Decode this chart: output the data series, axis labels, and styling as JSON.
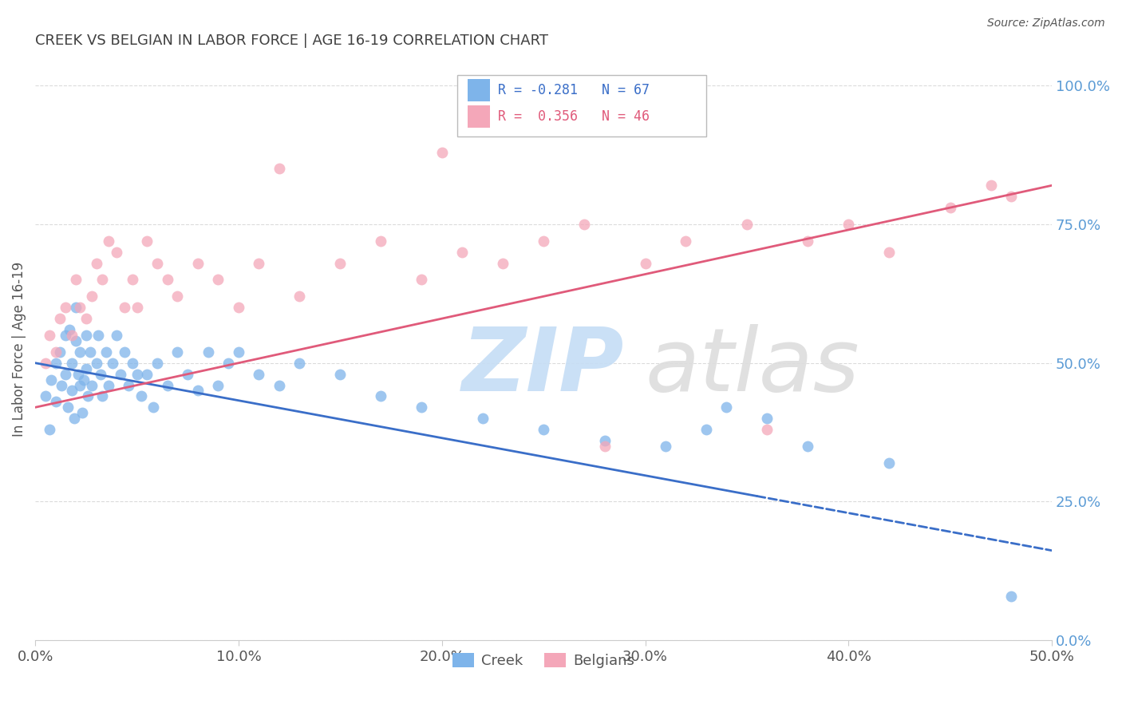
{
  "title": "CREEK VS BELGIAN IN LABOR FORCE | AGE 16-19 CORRELATION CHART",
  "source": "Source: ZipAtlas.com",
  "ylabel": "In Labor Force | Age 16-19",
  "xlim": [
    0.0,
    0.5
  ],
  "ylim": [
    0.0,
    1.05
  ],
  "xticks": [
    0.0,
    0.1,
    0.2,
    0.3,
    0.4,
    0.5
  ],
  "xticklabels": [
    "0.0%",
    "10.0%",
    "20.0%",
    "30.0%",
    "40.0%",
    "50.0%"
  ],
  "yticks": [
    0.0,
    0.25,
    0.5,
    0.75,
    1.0
  ],
  "yticklabels_right": [
    "0.0%",
    "25.0%",
    "50.0%",
    "75.0%",
    "100.0%"
  ],
  "creek_color": "#7EB4EA",
  "belgian_color": "#F4A7B9",
  "creek_line_color": "#3A6EC8",
  "belgian_line_color": "#E05A7A",
  "legend_r_creek": "R = -0.281",
  "legend_n_creek": "N = 67",
  "legend_r_belgian": "R =  0.356",
  "legend_n_belgian": "N = 46",
  "background_color": "#ffffff",
  "grid_color": "#cccccc",
  "right_tick_color": "#5B9BD5",
  "creek_line_y0": 0.5,
  "creek_line_y1": 0.26,
  "creek_line_x0": 0.0,
  "creek_line_x1": 0.355,
  "creek_line_dash_x0": 0.355,
  "creek_line_dash_x1": 0.5,
  "belgian_line_y0": 0.42,
  "belgian_line_y1": 0.82,
  "belgian_line_x0": 0.0,
  "belgian_line_x1": 0.5,
  "creek_x": [
    0.005,
    0.007,
    0.008,
    0.01,
    0.01,
    0.012,
    0.013,
    0.015,
    0.015,
    0.016,
    0.017,
    0.018,
    0.018,
    0.019,
    0.02,
    0.02,
    0.021,
    0.022,
    0.022,
    0.023,
    0.024,
    0.025,
    0.025,
    0.026,
    0.027,
    0.028,
    0.03,
    0.031,
    0.032,
    0.033,
    0.035,
    0.036,
    0.038,
    0.04,
    0.042,
    0.044,
    0.046,
    0.048,
    0.05,
    0.052,
    0.055,
    0.058,
    0.06,
    0.065,
    0.07,
    0.075,
    0.08,
    0.085,
    0.09,
    0.095,
    0.1,
    0.11,
    0.12,
    0.13,
    0.15,
    0.17,
    0.19,
    0.22,
    0.25,
    0.28,
    0.31,
    0.33,
    0.34,
    0.36,
    0.38,
    0.42,
    0.48
  ],
  "creek_y": [
    0.44,
    0.38,
    0.47,
    0.5,
    0.43,
    0.52,
    0.46,
    0.55,
    0.48,
    0.42,
    0.56,
    0.5,
    0.45,
    0.4,
    0.6,
    0.54,
    0.48,
    0.52,
    0.46,
    0.41,
    0.47,
    0.55,
    0.49,
    0.44,
    0.52,
    0.46,
    0.5,
    0.55,
    0.48,
    0.44,
    0.52,
    0.46,
    0.5,
    0.55,
    0.48,
    0.52,
    0.46,
    0.5,
    0.48,
    0.44,
    0.48,
    0.42,
    0.5,
    0.46,
    0.52,
    0.48,
    0.45,
    0.52,
    0.46,
    0.5,
    0.52,
    0.48,
    0.46,
    0.5,
    0.48,
    0.44,
    0.42,
    0.4,
    0.38,
    0.36,
    0.35,
    0.38,
    0.42,
    0.4,
    0.35,
    0.32,
    0.08
  ],
  "belgian_x": [
    0.005,
    0.007,
    0.01,
    0.012,
    0.015,
    0.018,
    0.02,
    0.022,
    0.025,
    0.028,
    0.03,
    0.033,
    0.036,
    0.04,
    0.044,
    0.048,
    0.05,
    0.055,
    0.06,
    0.065,
    0.07,
    0.08,
    0.09,
    0.1,
    0.11,
    0.13,
    0.15,
    0.17,
    0.19,
    0.21,
    0.23,
    0.25,
    0.27,
    0.3,
    0.32,
    0.35,
    0.38,
    0.4,
    0.42,
    0.45,
    0.47,
    0.48,
    0.12,
    0.2,
    0.28,
    0.36
  ],
  "belgian_y": [
    0.5,
    0.55,
    0.52,
    0.58,
    0.6,
    0.55,
    0.65,
    0.6,
    0.58,
    0.62,
    0.68,
    0.65,
    0.72,
    0.7,
    0.6,
    0.65,
    0.6,
    0.72,
    0.68,
    0.65,
    0.62,
    0.68,
    0.65,
    0.6,
    0.68,
    0.62,
    0.68,
    0.72,
    0.65,
    0.7,
    0.68,
    0.72,
    0.75,
    0.68,
    0.72,
    0.75,
    0.72,
    0.75,
    0.7,
    0.78,
    0.82,
    0.8,
    0.85,
    0.88,
    0.35,
    0.38
  ]
}
